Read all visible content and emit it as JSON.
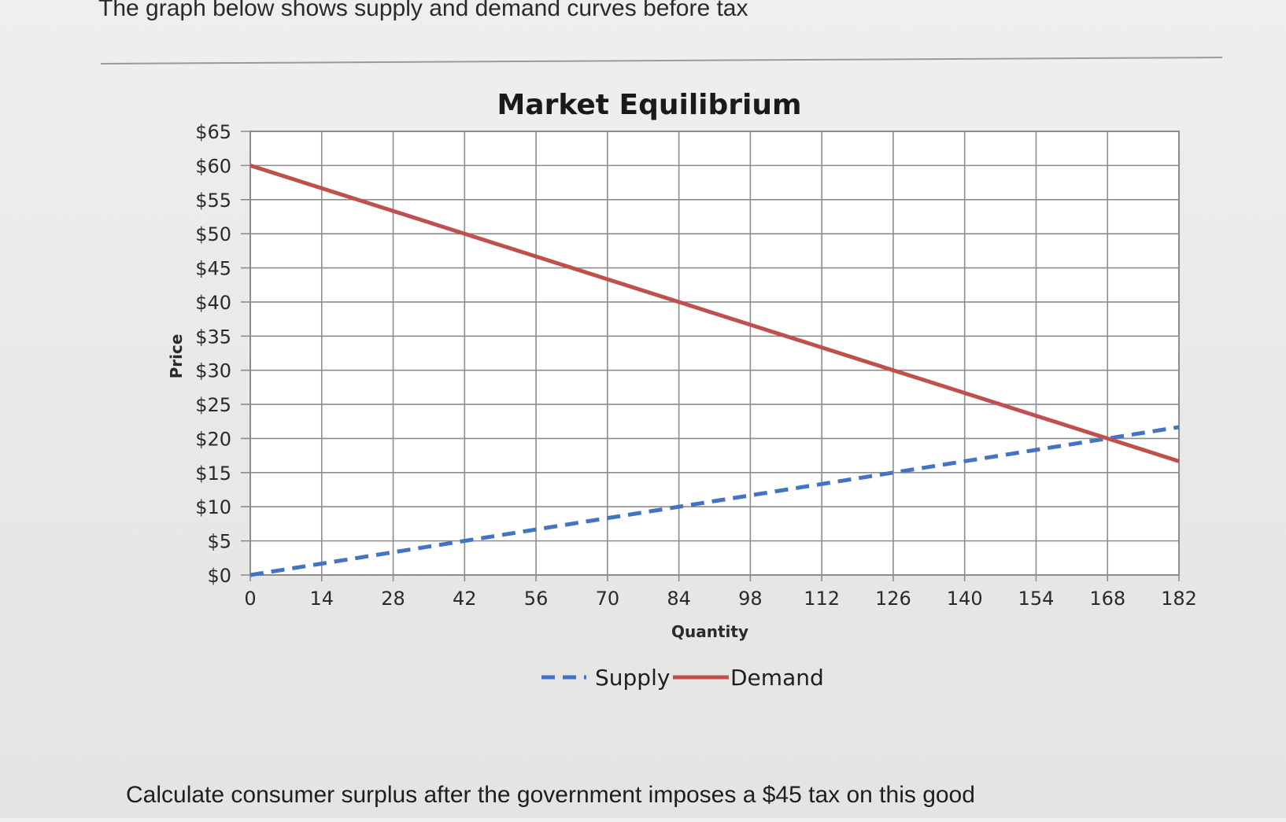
{
  "question": {
    "intro": "The graph below shows supply and demand curves before tax",
    "prompt": "Calculate consumer surplus after the government imposes a $45 tax on this good"
  },
  "colors": {
    "supply": "#4472c4",
    "demand": "#c0504d",
    "grid": "#8c8c8c",
    "plot_background": "#ffffff"
  },
  "chart_data": {
    "type": "line",
    "title": "Market Equilibrium",
    "xlabel": "Quantity",
    "ylabel": "Price",
    "x_ticks": [
      0,
      14,
      28,
      42,
      56,
      70,
      84,
      98,
      112,
      126,
      140,
      154,
      168,
      182
    ],
    "y_ticks": [
      0,
      5,
      10,
      15,
      20,
      25,
      30,
      35,
      40,
      45,
      50,
      55,
      60,
      65
    ],
    "y_tick_labels": [
      "$0",
      "$5",
      "$10",
      "$15",
      "$20",
      "$25",
      "$30",
      "$35",
      "$40",
      "$45",
      "$50",
      "$55",
      "$60",
      "$65"
    ],
    "xlim": [
      0,
      182
    ],
    "ylim": [
      0,
      65
    ],
    "grid": true,
    "legend_position": "bottom",
    "series": [
      {
        "name": "Supply",
        "style": "dashed",
        "color": "#4472c4",
        "x": [
          0,
          182
        ],
        "y": [
          0,
          21.67
        ]
      },
      {
        "name": "Demand",
        "style": "solid",
        "color": "#c0504d",
        "x": [
          0,
          182
        ],
        "y": [
          60,
          16.67
        ]
      }
    ]
  }
}
